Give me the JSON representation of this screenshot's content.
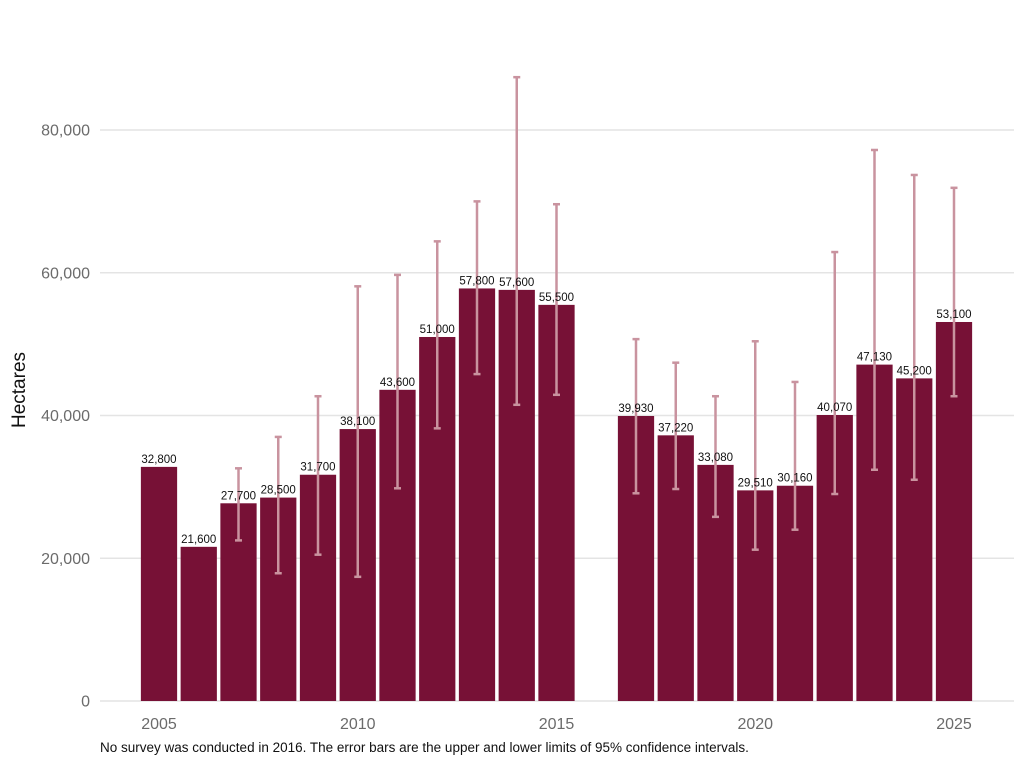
{
  "chart_data": {
    "type": "bar",
    "title": "",
    "xlabel": "",
    "ylabel": "Hectares",
    "ylim": [
      0,
      90000
    ],
    "yticks": [
      0,
      20000,
      40000,
      60000,
      80000
    ],
    "ytick_labels": [
      "0",
      "20,000",
      "40,000",
      "60,000",
      "80,000"
    ],
    "xticks": [
      2005,
      2010,
      2015,
      2020,
      2025
    ],
    "xtick_labels": [
      "2005",
      "2010",
      "2015",
      "2020",
      "2025"
    ],
    "xlim": [
      2004.5,
      2025.5
    ],
    "grid": "horizontal",
    "legend": "none",
    "bar_color": "#771136",
    "error_bar_color": "#c9939f",
    "categories": [
      2005,
      2006,
      2007,
      2008,
      2009,
      2010,
      2011,
      2012,
      2013,
      2014,
      2015,
      2017,
      2018,
      2019,
      2020,
      2021,
      2022,
      2023,
      2024,
      2025
    ],
    "values": [
      32800,
      21600,
      27700,
      28500,
      31700,
      38100,
      43600,
      51000,
      57800,
      57600,
      55500,
      39930,
      37220,
      33080,
      29510,
      30160,
      40070,
      47130,
      45200,
      53100
    ],
    "value_labels": [
      "32,800",
      "21,600",
      "27,700",
      "28,500",
      "31,700",
      "38,100",
      "43,600",
      "51,000",
      "57,800",
      "57,600",
      "55,500",
      "39,930",
      "37,220",
      "33,080",
      "29,510",
      "30,160",
      "40,070",
      "47,130",
      "45,200",
      "53,100"
    ],
    "error_upper": [
      null,
      null,
      32600,
      37000,
      42700,
      58100,
      59700,
      64400,
      70000,
      87400,
      69600,
      50700,
      47400,
      42700,
      50400,
      44700,
      62900,
      77200,
      73700,
      71900
    ],
    "error_lower": [
      null,
      null,
      22500,
      17900,
      20500,
      17400,
      29800,
      38200,
      45800,
      41500,
      42900,
      29100,
      29700,
      25800,
      21200,
      24000,
      29000,
      32400,
      31000,
      42700
    ],
    "note": "No survey was conducted in 2016. The error bars are the upper and lower limits of 95% confidence intervals."
  }
}
